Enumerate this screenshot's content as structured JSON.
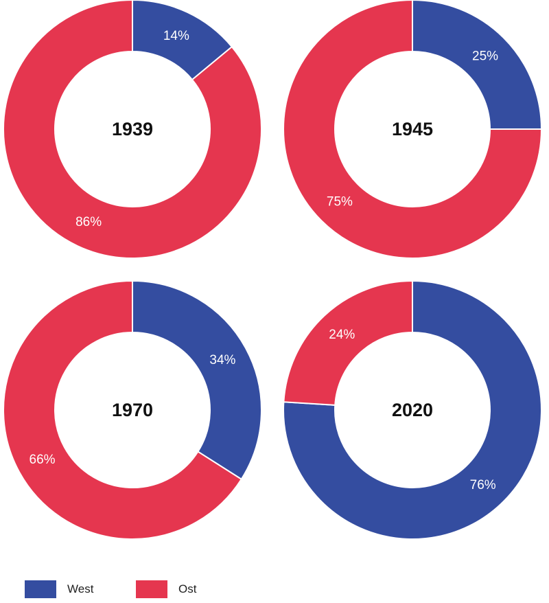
{
  "chart_data": [
    {
      "type": "pie",
      "title": "1939",
      "slices": [
        {
          "name": "West",
          "value": 14,
          "label": "14%"
        },
        {
          "name": "Ost",
          "value": 86,
          "label": "86%"
        }
      ]
    },
    {
      "type": "pie",
      "title": "1945",
      "slices": [
        {
          "name": "West",
          "value": 25,
          "label": "25%"
        },
        {
          "name": "Ost",
          "value": 75,
          "label": "75%"
        }
      ]
    },
    {
      "type": "pie",
      "title": "1970",
      "slices": [
        {
          "name": "West",
          "value": 34,
          "label": "34%"
        },
        {
          "name": "Ost",
          "value": 66,
          "label": "66%"
        }
      ]
    },
    {
      "type": "pie",
      "title": "2020",
      "slices": [
        {
          "name": "West",
          "value": 76,
          "label": "76%"
        },
        {
          "name": "Ost",
          "value": 24,
          "label": "24%"
        }
      ]
    }
  ],
  "legend": {
    "placement": "bottom-left",
    "items": [
      {
        "name": "West",
        "color": "#344da0"
      },
      {
        "name": "Ost",
        "color": "#e5364f"
      }
    ]
  }
}
